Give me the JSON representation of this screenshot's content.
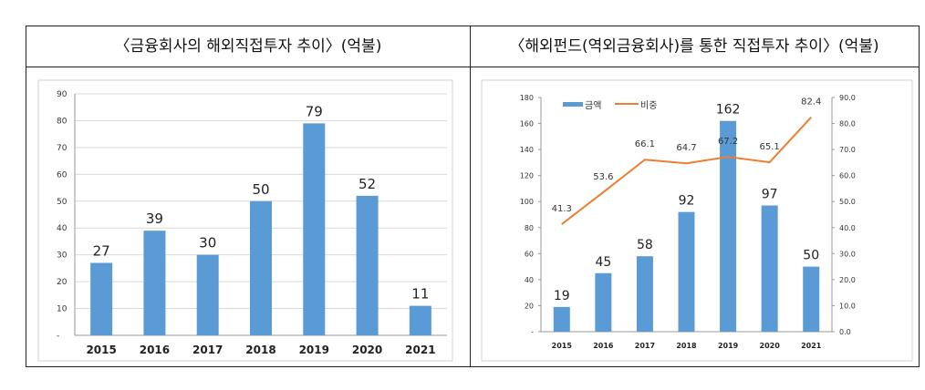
{
  "titles": {
    "left": "〈금융회사의 해외직접투자 추이〉(억불)",
    "right": "〈해외펀드(역외금융회사)를 통한 직접투자 추이〉(억불)"
  },
  "colors": {
    "bar": "#5b9bd5",
    "line": "#ed7d31"
  },
  "chart_data": [
    {
      "type": "bar",
      "title": "〈금융회사의 해외직접투자 추이〉(억불)",
      "categories": [
        "2015",
        "2016",
        "2017",
        "2018",
        "2019",
        "2020",
        "2021"
      ],
      "values": [
        27,
        39,
        30,
        50,
        79,
        52,
        11
      ],
      "ylim": [
        0,
        90
      ],
      "yticks": [
        "-",
        "10",
        "20",
        "30",
        "40",
        "50",
        "60",
        "70",
        "80",
        "90"
      ],
      "grid": true
    },
    {
      "type": "bar+line",
      "title": "〈해외펀드(역외금융회사)를 통한 직접투자 추이〉(억불)",
      "categories": [
        "2015",
        "2016",
        "2017",
        "2018",
        "2019",
        "2020",
        "2021"
      ],
      "series": [
        {
          "name": "금액",
          "type": "bar",
          "axis": "left",
          "values": [
            19,
            45,
            58,
            92,
            162,
            97,
            50
          ]
        },
        {
          "name": "비중",
          "type": "line",
          "axis": "right",
          "values": [
            41.3,
            53.6,
            66.1,
            64.7,
            67.2,
            65.1,
            82.4
          ]
        }
      ],
      "ylim_left": [
        0,
        180
      ],
      "ylim_right": [
        0,
        90
      ],
      "yticks_left": [
        "-",
        "20",
        "40",
        "60",
        "80",
        "100",
        "120",
        "140",
        "160",
        "180"
      ],
      "yticks_right": [
        "0.0",
        "10.0",
        "20.0",
        "30.0",
        "40.0",
        "50.0",
        "60.0",
        "70.0",
        "80.0",
        "90.0"
      ],
      "line_labels": [
        "41.3",
        "53.6",
        "66.1",
        "64.7",
        "67.2",
        "65.1",
        "82.4"
      ],
      "legend": "top-left",
      "grid": false
    }
  ]
}
